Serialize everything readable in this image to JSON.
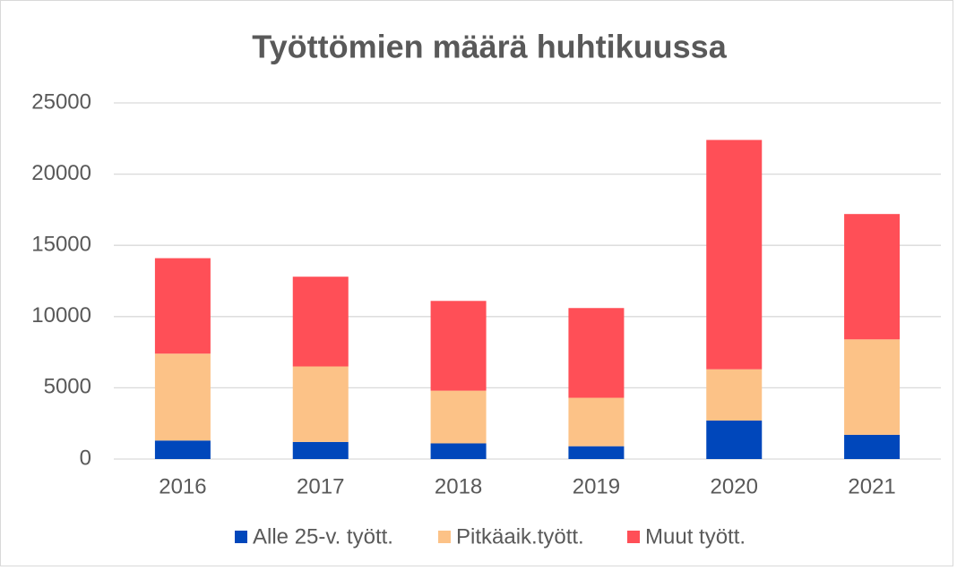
{
  "chart_data": {
    "type": "stacked_bar",
    "title": "Työttömien määrä huhtikuussa",
    "categories": [
      "2016",
      "2017",
      "2018",
      "2019",
      "2020",
      "2021"
    ],
    "series": [
      {
        "name": "Alle 25-v. tyött.",
        "color": "#0047bb",
        "values": [
          1300,
          1200,
          1100,
          900,
          2700,
          1700
        ]
      },
      {
        "name": "Pitkäaik.tyött.",
        "color": "#fcc287",
        "values": [
          6100,
          5300,
          3700,
          3400,
          3600,
          6700
        ]
      },
      {
        "name": "Muut tyött.",
        "color": "#ff4f57",
        "values": [
          6700,
          6300,
          6300,
          6300,
          16100,
          8800
        ]
      }
    ],
    "ylim": [
      0,
      25000
    ],
    "yticks": [
      0,
      5000,
      10000,
      15000,
      20000,
      25000
    ],
    "grid": true,
    "legend": "bottom"
  }
}
